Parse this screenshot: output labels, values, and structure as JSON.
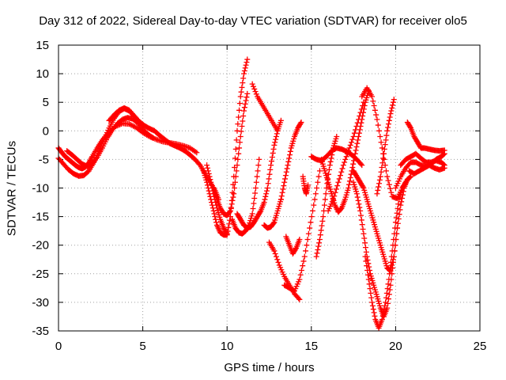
{
  "chart_data": {
    "type": "scatter",
    "title": "Day 312 of 2022, Sidereal Day-to-day VTEC variation (SDTVAR) for receiver olo5",
    "xlabel": "GPS time / hours",
    "ylabel": "SDTVAR / TECUs",
    "xlim": [
      0,
      25
    ],
    "ylim": [
      -35,
      15
    ],
    "x_ticks": [
      0,
      5,
      10,
      15,
      20,
      25
    ],
    "y_ticks": [
      15,
      10,
      5,
      0,
      -5,
      -10,
      -15,
      -20,
      -25,
      -30,
      -35
    ],
    "grid": true,
    "marker": "+",
    "color": "#ff0000",
    "series": [
      {
        "x": [
          0.0,
          0.2,
          0.4,
          0.6,
          0.8,
          1.0,
          1.2,
          1.4,
          1.6,
          1.8,
          2.0,
          2.3,
          2.6,
          3.0,
          3.4,
          3.8,
          4.2,
          4.6,
          5.0,
          5.4,
          5.8,
          6.2,
          6.6,
          7.0,
          7.4,
          7.8,
          8.2
        ],
        "y": [
          -3.0,
          -3.8,
          -4.5,
          -5.0,
          -5.5,
          -6.0,
          -6.4,
          -6.6,
          -6.3,
          -5.6,
          -4.5,
          -3.0,
          -1.6,
          -0.2,
          0.8,
          1.3,
          1.2,
          0.6,
          -0.3,
          -1.0,
          -1.5,
          -1.9,
          -2.1,
          -2.3,
          -2.6,
          -3.0,
          -3.8
        ]
      },
      {
        "x": [
          0.0,
          0.3,
          0.6,
          0.9,
          1.2,
          1.5,
          1.8,
          2.1,
          2.4,
          2.7,
          3.0,
          3.3,
          3.6,
          3.9,
          4.2,
          4.5,
          4.8
        ],
        "y": [
          -4.8,
          -5.8,
          -6.8,
          -7.5,
          -7.9,
          -7.8,
          -7.0,
          -5.5,
          -3.5,
          -1.5,
          0.5,
          2.2,
          3.4,
          3.9,
          3.5,
          2.5,
          1.5
        ]
      },
      {
        "x": [
          0.5,
          0.8,
          1.1,
          1.4,
          1.7,
          2.0,
          2.3,
          2.6,
          2.9,
          3.2,
          3.5,
          3.8,
          4.1,
          4.4,
          4.7,
          5.0,
          5.3,
          5.6
        ],
        "y": [
          -3.5,
          -4.2,
          -5.0,
          -5.8,
          -6.2,
          -5.8,
          -4.6,
          -3.0,
          -1.2,
          0.2,
          1.3,
          2.0,
          2.3,
          2.1,
          1.4,
          0.3,
          -0.6,
          -1.2
        ]
      },
      {
        "x": [
          3.0,
          3.3,
          3.6,
          3.9,
          4.2,
          4.5,
          4.8,
          5.1,
          5.4,
          5.7,
          6.0,
          6.3,
          6.6,
          6.9,
          7.2,
          7.5,
          7.8,
          8.1,
          8.4,
          8.7,
          9.0,
          9.3,
          9.5
        ],
        "y": [
          1.8,
          2.8,
          3.6,
          4.0,
          3.6,
          2.6,
          1.6,
          0.9,
          0.4,
          0.0,
          -0.8,
          -1.5,
          -2.2,
          -2.6,
          -3.0,
          -3.5,
          -4.2,
          -5.0,
          -6.0,
          -7.5,
          -9.0,
          -10.5,
          -12.0
        ]
      },
      {
        "x": [
          8.8,
          9.0,
          9.2,
          9.4,
          9.6,
          9.8,
          10.0
        ],
        "y": [
          -6.0,
          -8.5,
          -11.0,
          -13.5,
          -15.5,
          -17.0,
          -18.0
        ]
      },
      {
        "x": [
          8.6,
          8.8,
          9.0,
          9.2,
          9.4,
          9.6,
          9.8,
          10.0,
          10.2,
          10.4,
          10.6,
          10.8,
          11.0,
          11.2
        ],
        "y": [
          -7.0,
          -9.0,
          -11.5,
          -14.0,
          -16.5,
          -17.8,
          -18.2,
          -18.2,
          -15.0,
          -8.0,
          0.0,
          6.0,
          10.0,
          12.5
        ]
      },
      {
        "x": [
          9.2,
          9.4,
          9.6,
          9.8,
          10.0,
          10.2,
          10.4,
          10.6,
          10.8,
          11.0,
          11.2
        ],
        "y": [
          -10.0,
          -12.0,
          -13.5,
          -14.5,
          -14.8,
          -14.0,
          -11.0,
          -6.0,
          -1.0,
          3.5,
          6.5
        ]
      },
      {
        "x": [
          10.3,
          10.5,
          10.7,
          10.9,
          11.1,
          11.3,
          11.5,
          11.7,
          11.9
        ],
        "y": [
          -15.5,
          -17.0,
          -17.8,
          -18.0,
          -17.5,
          -16.5,
          -14.5,
          -10.0,
          -5.0
        ]
      },
      {
        "x": [
          10.6,
          10.8,
          11.0,
          11.2,
          11.4,
          11.6,
          11.8,
          12.0,
          12.2,
          12.4,
          12.6,
          12.8,
          13.0,
          13.2
        ],
        "y": [
          -14.5,
          -15.5,
          -16.5,
          -17.0,
          -16.8,
          -16.0,
          -15.0,
          -14.0,
          -12.5,
          -10.0,
          -6.0,
          -2.5,
          0.0,
          1.8
        ]
      },
      {
        "x": [
          11.5,
          11.8,
          12.1,
          12.4,
          12.7,
          13.0
        ],
        "y": [
          8.2,
          6.0,
          4.5,
          3.0,
          1.5,
          0.0
        ]
      },
      {
        "x": [
          12.2,
          12.4,
          12.6,
          12.8,
          13.0,
          13.2
        ],
        "y": [
          -16.5,
          -17.0,
          -16.8,
          -16.0,
          -14.0,
          -12.0
        ]
      },
      {
        "x": [
          12.5,
          12.8,
          13.1,
          13.4,
          13.7,
          14.0,
          14.3
        ],
        "y": [
          -19.5,
          -21.0,
          -23.5,
          -25.5,
          -27.0,
          -28.5,
          -29.5
        ]
      },
      {
        "x": [
          13.4,
          13.7,
          14.0,
          14.3,
          14.6,
          14.9,
          15.2,
          15.5
        ],
        "y": [
          -27.0,
          -27.5,
          -28.0,
          -26.0,
          -22.0,
          -17.0,
          -12.0,
          -7.0
        ]
      },
      {
        "x": [
          13.2,
          13.4,
          13.6,
          13.8,
          14.0,
          14.2,
          14.4
        ],
        "y": [
          -12.0,
          -9.0,
          -6.0,
          -3.0,
          -1.0,
          0.5,
          1.5
        ]
      },
      {
        "x": [
          13.5,
          13.7,
          13.9,
          14.1,
          14.3
        ],
        "y": [
          -18.5,
          -20.0,
          -21.5,
          -20.5,
          -19.0
        ]
      },
      {
        "x": [
          14.5,
          14.6,
          14.7,
          14.8
        ],
        "y": [
          -8.0,
          -10.0,
          -11.0,
          -9.5
        ]
      },
      {
        "x": [
          15.0,
          15.3,
          15.6,
          15.9,
          16.2,
          16.5,
          16.8,
          17.1,
          17.4,
          17.7,
          18.0
        ],
        "y": [
          -4.5,
          -5.0,
          -5.2,
          -4.5,
          -3.5,
          -3.0,
          -3.2,
          -3.6,
          -4.2,
          -5.0,
          -6.0
        ]
      },
      {
        "x": [
          15.3,
          15.5,
          15.7,
          15.9,
          16.1,
          16.3,
          16.5
        ],
        "y": [
          -22.0,
          -19.0,
          -15.0,
          -10.0,
          -6.0,
          -3.0,
          -1.0
        ]
      },
      {
        "x": [
          15.6,
          15.8,
          16.0,
          16.2,
          16.4,
          16.6,
          16.8,
          17.0,
          17.2,
          17.4,
          17.6,
          17.8,
          18.0,
          18.2,
          18.4
        ],
        "y": [
          -5.0,
          -7.0,
          -9.0,
          -11.0,
          -13.0,
          -14.2,
          -13.5,
          -12.0,
          -10.0,
          -7.0,
          -4.0,
          -1.0,
          2.0,
          5.0,
          7.0
        ]
      },
      {
        "x": [
          16.0,
          16.3,
          16.6,
          16.9,
          17.2,
          17.5,
          17.8,
          18.1
        ],
        "y": [
          -14.0,
          -12.0,
          -9.0,
          -6.0,
          -3.5,
          -1.0,
          2.0,
          5.0
        ]
      },
      {
        "x": [
          17.5,
          17.7,
          17.9,
          18.1,
          18.3,
          18.5,
          18.7,
          18.9,
          19.1,
          19.3,
          19.5,
          19.7,
          19.9,
          20.1
        ],
        "y": [
          -7.0,
          -8.0,
          -9.0,
          -10.0,
          -12.0,
          -14.0,
          -16.0,
          -18.0,
          -20.0,
          -22.0,
          -24.0,
          -24.5,
          -22.0,
          -17.0
        ]
      },
      {
        "x": [
          17.5,
          17.7,
          17.9,
          18.1,
          18.3,
          18.5,
          18.7,
          18.9,
          19.1,
          19.3,
          19.5,
          19.7,
          19.9,
          20.1,
          20.3,
          20.5,
          20.7,
          20.9
        ],
        "y": [
          -9.0,
          -11.0,
          -14.0,
          -18.0,
          -22.0,
          -25.0,
          -27.0,
          -29.0,
          -31.0,
          -32.5,
          -31.0,
          -27.0,
          -22.0,
          -17.0,
          -13.0,
          -10.0,
          -8.5,
          -8.0
        ]
      },
      {
        "x": [
          18.2,
          18.4,
          18.6,
          18.8,
          19.0,
          19.2,
          19.4,
          19.6,
          19.8,
          20.0,
          20.2,
          20.4,
          20.6
        ],
        "y": [
          -22.0,
          -26.0,
          -30.0,
          -33.0,
          -34.5,
          -33.0,
          -30.0,
          -26.0,
          -21.0,
          -16.0,
          -12.0,
          -10.0,
          -9.0
        ]
      },
      {
        "x": [
          18.0,
          18.3,
          18.6,
          18.9,
          19.2,
          19.5,
          19.8,
          20.1,
          20.4,
          20.7
        ],
        "y": [
          6.0,
          7.5,
          6.0,
          2.0,
          -3.0,
          -8.0,
          -11.5,
          -11.8,
          -10.0,
          -8.5
        ]
      },
      {
        "x": [
          18.9,
          19.1,
          19.3,
          19.5,
          19.7,
          19.9
        ],
        "y": [
          -11.0,
          -8.0,
          -4.0,
          0.0,
          3.0,
          5.5
        ]
      },
      {
        "x": [
          20.0,
          20.3,
          20.6,
          20.9,
          21.2,
          21.5,
          21.8,
          22.1,
          22.4,
          22.7,
          22.9
        ],
        "y": [
          -10.0,
          -8.0,
          -6.5,
          -5.5,
          -5.5,
          -6.0,
          -6.2,
          -5.8,
          -5.0,
          -4.5,
          -4.0
        ]
      },
      {
        "x": [
          20.3,
          20.6,
          20.9,
          21.2,
          21.5,
          21.8,
          22.1,
          22.4,
          22.7,
          22.9
        ],
        "y": [
          -6.0,
          -5.0,
          -4.5,
          -4.0,
          -4.8,
          -5.5,
          -5.5,
          -5.2,
          -5.5,
          -6.0
        ]
      },
      {
        "x": [
          20.8,
          21.1,
          21.4,
          21.7,
          22.0,
          22.3,
          22.6,
          22.9
        ],
        "y": [
          -7.0,
          -7.5,
          -7.0,
          -6.5,
          -6.0,
          -6.5,
          -6.8,
          -6.5
        ]
      },
      {
        "x": [
          20.7,
          20.9,
          21.1,
          21.3,
          21.5,
          21.7,
          22.0,
          22.3,
          22.6,
          22.9
        ],
        "y": [
          1.5,
          0.5,
          -1.0,
          -2.0,
          -3.0,
          -3.0,
          -3.2,
          -3.4,
          -3.5,
          -3.4
        ]
      }
    ]
  }
}
